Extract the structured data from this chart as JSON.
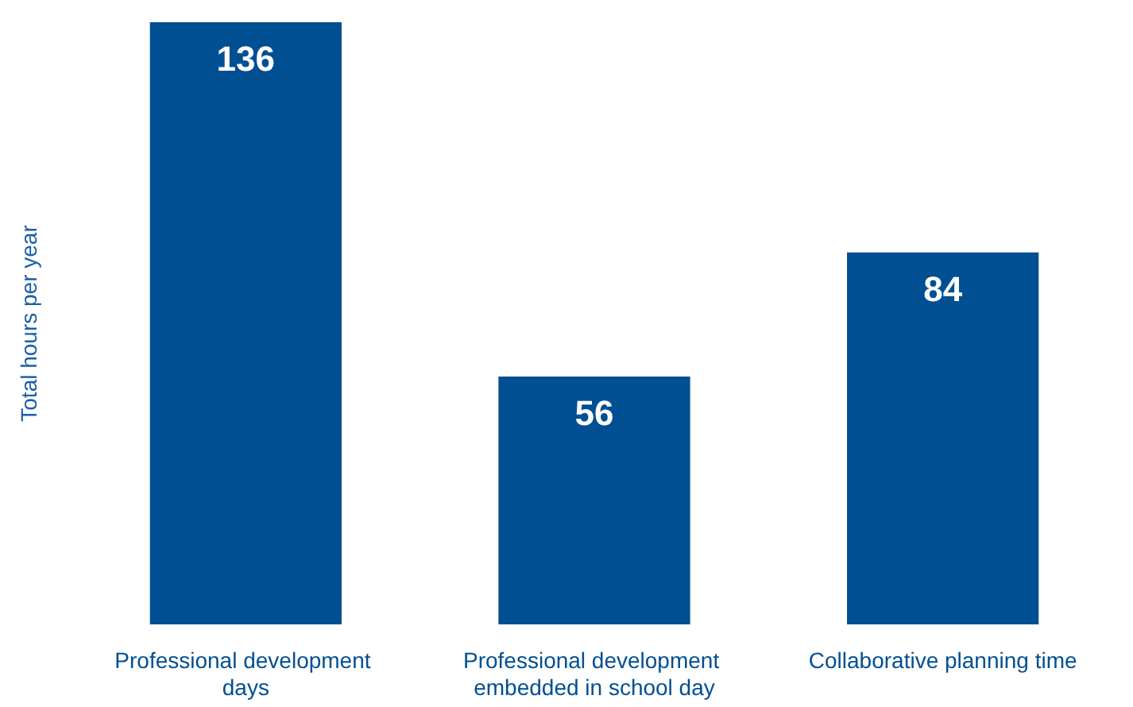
{
  "chart_data": {
    "type": "bar",
    "ylabel": "Total hours per year",
    "categories": [
      "Professional development days",
      "Professional development embedded in school day",
      "Collaborative planning time"
    ],
    "values": [
      136,
      56,
      84
    ],
    "color": "#004f93",
    "data_labels": true
  }
}
